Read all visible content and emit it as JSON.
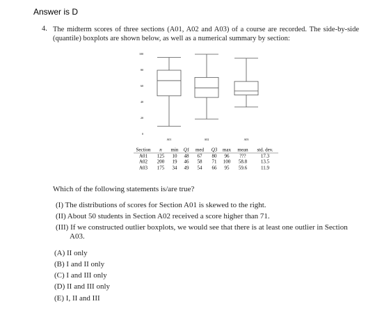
{
  "header": {
    "answer": "Answer is D"
  },
  "question": {
    "number": "4.",
    "text": "The midterm scores of three sections (A01, A02 and A03) of a course are recorded. The side-by-side (quantile) boxplots are shown below, as well as a numerical summary by section:"
  },
  "figure": {
    "type": "boxplot",
    "categories": [
      "A01",
      "A02",
      "A03"
    ],
    "min": [
      10,
      19,
      34
    ],
    "q1": [
      48,
      46,
      49
    ],
    "median": [
      67,
      58,
      54
    ],
    "q3": [
      80,
      71,
      66
    ],
    "max": [
      96,
      100,
      95
    ],
    "ylim": [
      0,
      100
    ],
    "yticks": [
      0,
      20,
      40,
      60,
      80,
      100
    ]
  },
  "table": {
    "header": [
      "Section",
      "n",
      "min",
      "Q1",
      "med",
      "Q3",
      "max",
      "mean",
      "std. dev."
    ],
    "rows": [
      [
        "A01",
        "125",
        "10",
        "48",
        "67",
        "80",
        "96",
        "???",
        "17.3"
      ],
      [
        "A02",
        "200",
        "19",
        "46",
        "58",
        "71",
        "100",
        "58.8",
        "13.5"
      ],
      [
        "A03",
        "175",
        "34",
        "49",
        "54",
        "66",
        "95",
        "59.6",
        "11.9"
      ]
    ]
  },
  "prompt": "Which of the following statements is/are true?",
  "statements": [
    "(I) The distributions of scores for Section A01 is skewed to the right.",
    "(II) About 50 students in Section A02 received a score higher than 71.",
    "(III) If we constructed outlier boxplots, we would see that there is at least one outlier in Section A03."
  ],
  "options": [
    "(A) II only",
    "(B) I and II only",
    "(C) I and III only",
    "(D) II and III only",
    "(E) I, II and III"
  ]
}
